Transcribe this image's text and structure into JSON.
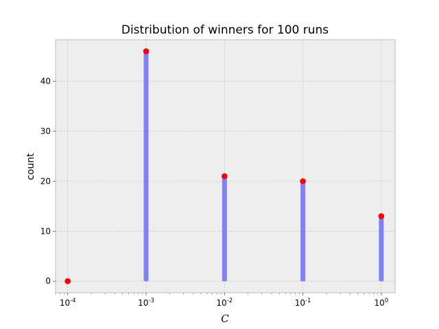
{
  "chart_data": {
    "type": "bar",
    "title": "Distribution of winners for 100 runs",
    "xlabel": "C",
    "ylabel": "count",
    "x_scale": "log",
    "x": [
      0.0001,
      0.001,
      0.01,
      0.1,
      1
    ],
    "values": [
      0,
      46,
      21,
      20,
      13
    ],
    "x_tick_labels": [
      {
        "base": "10",
        "exp": "-4"
      },
      {
        "base": "10",
        "exp": "-3"
      },
      {
        "base": "10",
        "exp": "-2"
      },
      {
        "base": "10",
        "exp": "-1"
      },
      {
        "base": "10",
        "exp": "0"
      }
    ],
    "y_ticks": [
      0,
      10,
      20,
      30,
      40
    ],
    "xlim": [
      7e-05,
      1.5
    ],
    "ylim": [
      -2.3,
      48.3
    ],
    "grid": true,
    "colors": {
      "bar": "#7b7bf2",
      "marker": "#ff0000",
      "plot_background": "#eeeeee",
      "grid": "#b0b0b0",
      "frame": "#bcbcbc"
    }
  }
}
